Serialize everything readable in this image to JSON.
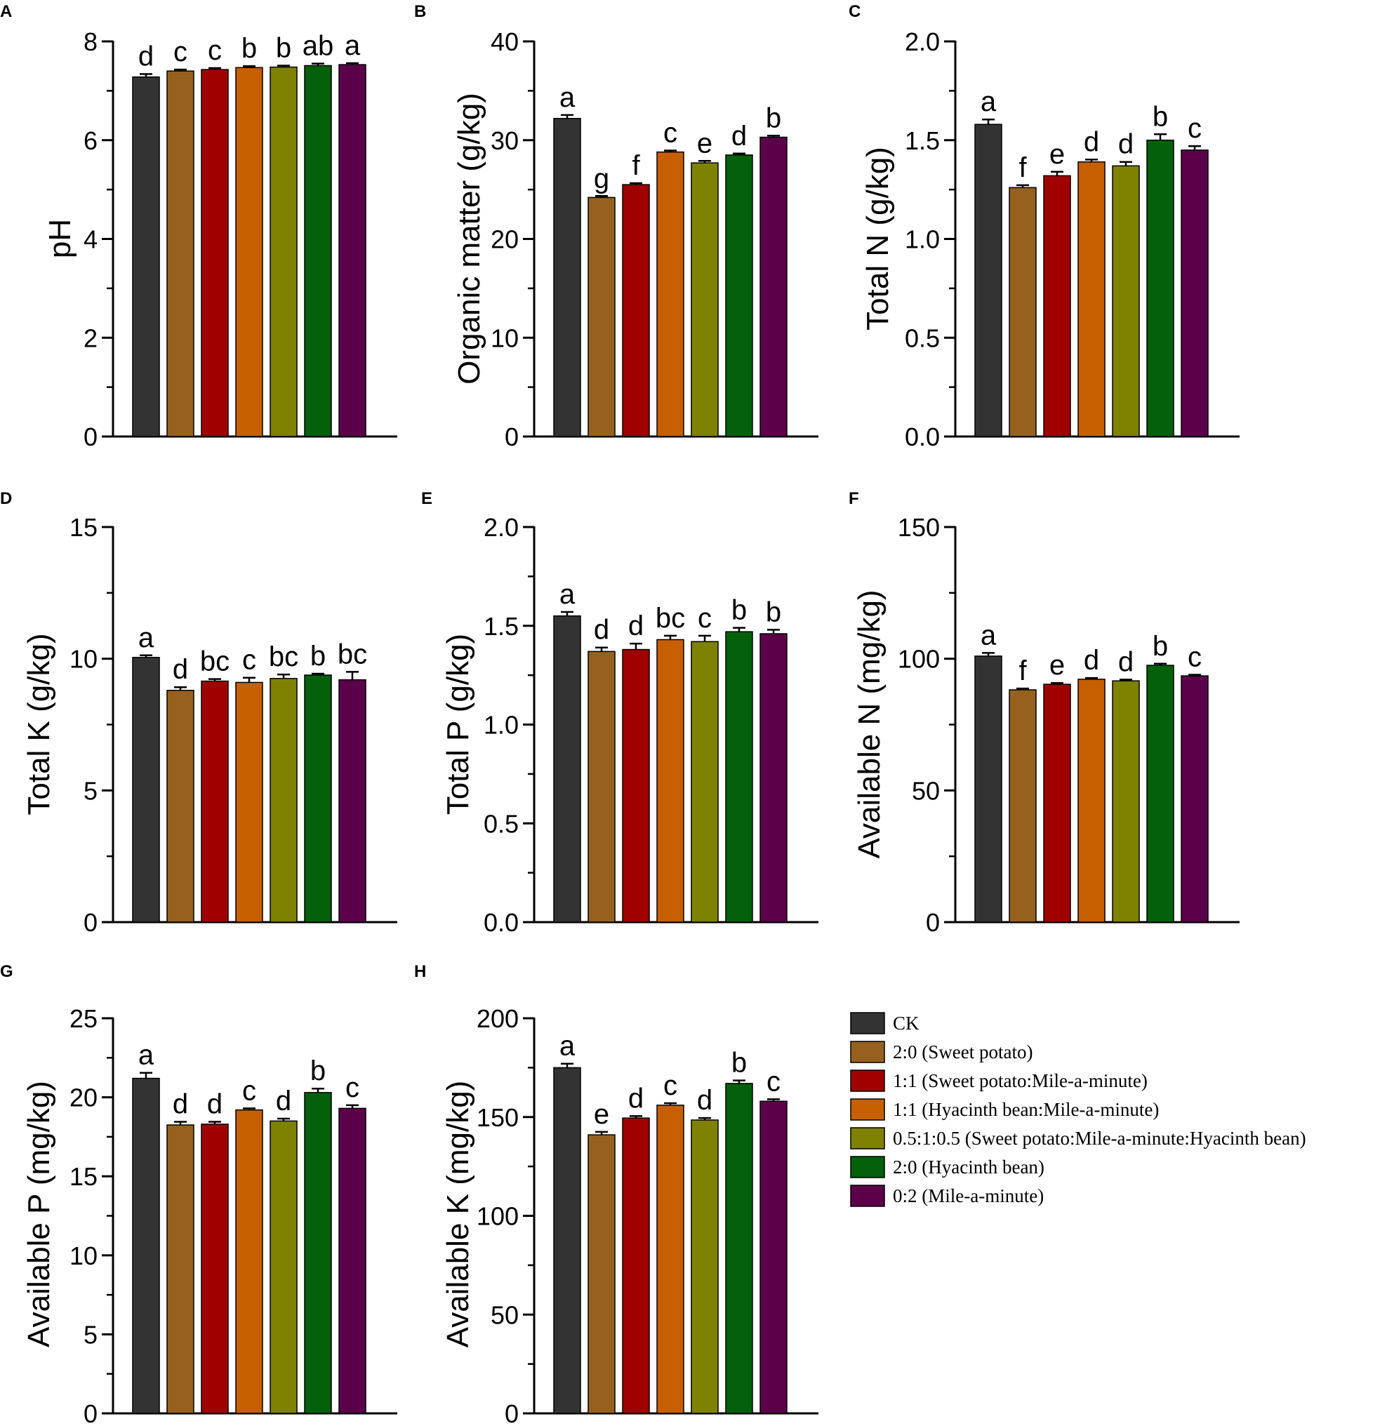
{
  "chart_data": [
    {
      "type": "bar",
      "panel": "A",
      "ylabel": "pH",
      "ylim": [
        0,
        8
      ],
      "yticks": [
        0,
        2,
        4,
        6,
        8
      ],
      "ytick_labels": [
        "0",
        "2",
        "4",
        "6",
        "8"
      ],
      "values": [
        7.28,
        7.4,
        7.43,
        7.47,
        7.48,
        7.51,
        7.53
      ],
      "errors": [
        0.06,
        0.03,
        0.03,
        0.03,
        0.03,
        0.04,
        0.03
      ],
      "letters": [
        "d",
        "c",
        "c",
        "b",
        "b",
        "ab",
        "a"
      ]
    },
    {
      "type": "bar",
      "panel": "B",
      "ylabel": "Organic matter (g/kg)",
      "ylim": [
        0,
        40
      ],
      "yticks": [
        0,
        10,
        20,
        30,
        40
      ],
      "ytick_labels": [
        "0",
        "10",
        "20",
        "30",
        "40"
      ],
      "values": [
        32.2,
        24.2,
        25.5,
        28.8,
        27.7,
        28.5,
        30.3
      ],
      "errors": [
        0.35,
        0.15,
        0.15,
        0.15,
        0.2,
        0.15,
        0.15
      ],
      "letters": [
        "a",
        "g",
        "f",
        "c",
        "e",
        "d",
        "b"
      ]
    },
    {
      "type": "bar",
      "panel": "C",
      "ylabel": "Total N (g/kg)",
      "ylim": [
        0,
        2.0
      ],
      "yticks": [
        0,
        0.5,
        1.0,
        1.5,
        2.0
      ],
      "ytick_labels": [
        "0.0",
        "0.5",
        "1.0",
        "1.5",
        "2.0"
      ],
      "values": [
        1.58,
        1.26,
        1.32,
        1.39,
        1.37,
        1.5,
        1.45
      ],
      "errors": [
        0.025,
        0.012,
        0.02,
        0.012,
        0.02,
        0.03,
        0.02
      ],
      "letters": [
        "a",
        "f",
        "e",
        "d",
        "d",
        "b",
        "c"
      ]
    },
    {
      "type": "bar",
      "panel": "D",
      "ylabel": "Total K (g/kg)",
      "ylim": [
        0,
        15
      ],
      "yticks": [
        0,
        5,
        10,
        15
      ],
      "ytick_labels": [
        "0",
        "5",
        "10",
        "15"
      ],
      "values": [
        10.05,
        8.8,
        9.15,
        9.1,
        9.25,
        9.38,
        9.2
      ],
      "errors": [
        0.08,
        0.12,
        0.08,
        0.18,
        0.15,
        0.05,
        0.3
      ],
      "letters": [
        "a",
        "d",
        "bc",
        "c",
        "bc",
        "b",
        "bc"
      ]
    },
    {
      "type": "bar",
      "panel": "E",
      "ylabel": "Total P (g/kg)",
      "ylim": [
        0,
        2.0
      ],
      "yticks": [
        0,
        0.5,
        1.0,
        1.5,
        2.0
      ],
      "ytick_labels": [
        "0.0",
        "0.5",
        "1.0",
        "1.5",
        "2.0"
      ],
      "values": [
        1.55,
        1.37,
        1.38,
        1.43,
        1.42,
        1.47,
        1.46
      ],
      "errors": [
        0.02,
        0.02,
        0.03,
        0.02,
        0.03,
        0.02,
        0.02
      ],
      "letters": [
        "a",
        "d",
        "d",
        "bc",
        "c",
        "b",
        "b"
      ]
    },
    {
      "type": "bar",
      "panel": "F",
      "ylabel": "Available N (mg/kg)",
      "ylim": [
        0,
        150
      ],
      "yticks": [
        0,
        50,
        100,
        150
      ],
      "ytick_labels": [
        "0",
        "50",
        "100",
        "150"
      ],
      "values": [
        101,
        88.2,
        90.3,
        92.2,
        91.6,
        97.5,
        93.5
      ],
      "errors": [
        1.2,
        0.5,
        0.5,
        0.5,
        0.5,
        0.6,
        0.4
      ],
      "letters": [
        "a",
        "f",
        "e",
        "d",
        "d",
        "b",
        "c"
      ]
    },
    {
      "type": "bar",
      "panel": "G",
      "ylabel": "Available P (mg/kg)",
      "ylim": [
        0,
        25
      ],
      "yticks": [
        0,
        5,
        10,
        15,
        20,
        25
      ],
      "ytick_labels": [
        "0",
        "5",
        "10",
        "15",
        "20",
        "25"
      ],
      "values": [
        21.2,
        18.25,
        18.3,
        19.2,
        18.5,
        20.3,
        19.3
      ],
      "errors": [
        0.35,
        0.2,
        0.15,
        0.1,
        0.15,
        0.25,
        0.2
      ],
      "letters": [
        "a",
        "d",
        "d",
        "c",
        "d",
        "b",
        "c"
      ]
    },
    {
      "type": "bar",
      "panel": "H",
      "ylabel": "Available K (mg/kg)",
      "ylim": [
        0,
        200
      ],
      "yticks": [
        0,
        50,
        100,
        150,
        200
      ],
      "ytick_labels": [
        "0",
        "50",
        "100",
        "150",
        "200"
      ],
      "values": [
        175,
        141,
        149.5,
        156,
        148.5,
        167,
        158
      ],
      "errors": [
        2,
        1.5,
        1,
        1,
        1,
        1.5,
        1
      ],
      "letters": [
        "a",
        "e",
        "d",
        "c",
        "d",
        "b",
        "c"
      ]
    }
  ],
  "legend": [
    {
      "label": "CK",
      "color": "#333333"
    },
    {
      "label": "2:0 (Sweet potato)",
      "color": "#96611e"
    },
    {
      "label": "1:1 (Sweet potato:Mile-a-minute)",
      "color": "#a10000"
    },
    {
      "label": "1:1 (Hyacinth bean:Mile-a-minute)",
      "color": "#c55f00"
    },
    {
      "label": "0.5:1:0.5 (Sweet potato:Mile-a-minute:Hyacinth bean)",
      "color": "#7e8200"
    },
    {
      "label": "2:0 (Hyacinth bean)",
      "color": "#04600a"
    },
    {
      "label": "0:2 (Mile-a-minute)",
      "color": "#5b0049"
    }
  ]
}
